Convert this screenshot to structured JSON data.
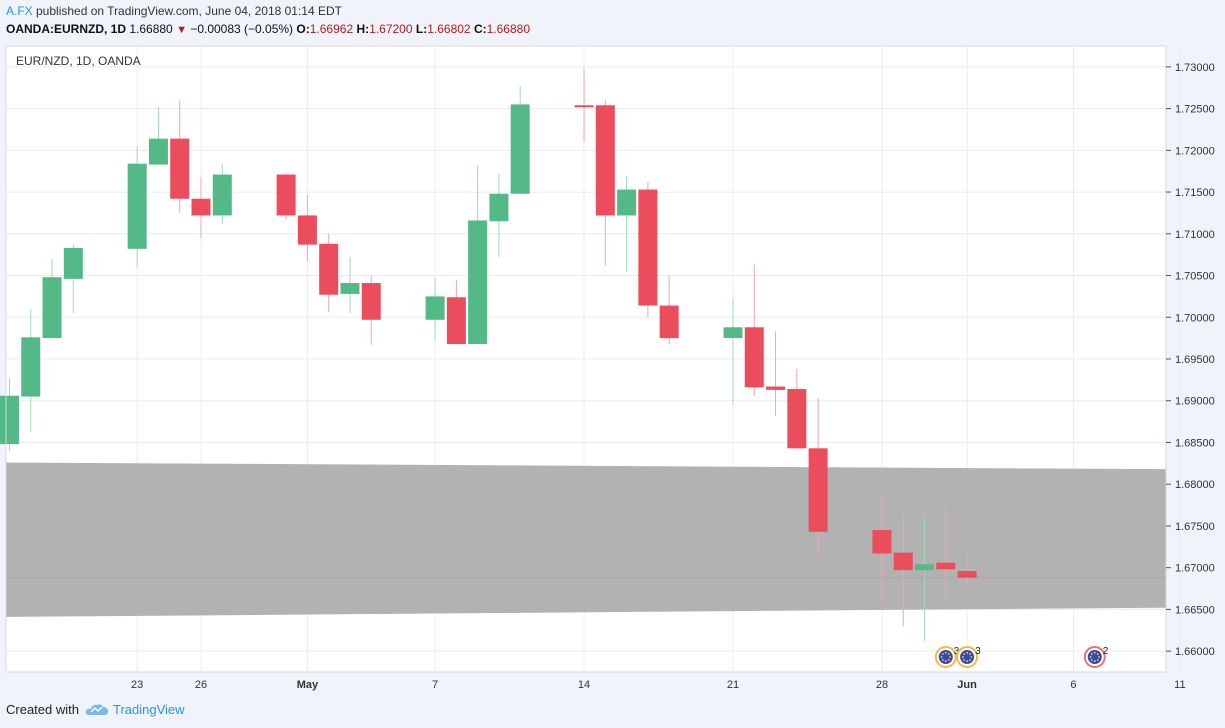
{
  "header": {
    "user": "A.FX",
    "published_text": " published on TradingView.com, June 04, 2018 01:14 EDT",
    "symbol_line": "OANDA:EURNZD, 1D",
    "last": "1.66880",
    "arrow": "▼",
    "change": "−0.00083 (−0.05%)",
    "o_label": "O:",
    "o_value": "1.66962",
    "h_label": "H:",
    "h_value": "1.67200",
    "l_label": "L:",
    "l_value": "1.66802",
    "c_label": "C:",
    "c_value": "1.66880"
  },
  "footer": {
    "created_with": "Created with",
    "brand": "TradingView"
  },
  "colors": {
    "up": "#53b987",
    "down": "#eb4d5c",
    "band": "#b2b2b2",
    "grid": "#e9ecf1",
    "price_line": "#e88a96"
  },
  "chart_data": {
    "type": "candlestick",
    "title": "EUR/NZD, 1D, OANDA",
    "ylim": [
      1.6575,
      1.7325
    ],
    "y_ticks": [
      "1.73000",
      "1.72500",
      "1.72000",
      "1.71500",
      "1.71000",
      "1.70500",
      "1.70000",
      "1.69500",
      "1.69000",
      "1.68500",
      "1.68000",
      "1.67500",
      "1.67000",
      "1.66500",
      "1.66000"
    ],
    "x_ticks": [
      {
        "label": "23",
        "date": "2018-04-23"
      },
      {
        "label": "26",
        "date": "2018-04-26"
      },
      {
        "label": "May",
        "date": "2018-05-01"
      },
      {
        "label": "7",
        "date": "2018-05-07"
      },
      {
        "label": "14",
        "date": "2018-05-14"
      },
      {
        "label": "21",
        "date": "2018-05-21"
      },
      {
        "label": "28",
        "date": "2018-05-28"
      },
      {
        "label": "Jun",
        "date": "2018-06-01"
      },
      {
        "label": "6",
        "date": "2018-06-06"
      },
      {
        "label": "11",
        "date": "2018-06-11"
      }
    ],
    "candles": [
      {
        "date": "2018-04-17",
        "o": 1.6848,
        "h": 1.6927,
        "l": 1.684,
        "c": 1.6906
      },
      {
        "date": "2018-04-18",
        "o": 1.6905,
        "h": 1.701,
        "l": 1.6863,
        "c": 1.6976
      },
      {
        "date": "2018-04-19",
        "o": 1.6975,
        "h": 1.707,
        "l": 1.6975,
        "c": 1.7048
      },
      {
        "date": "2018-04-20",
        "o": 1.7046,
        "h": 1.7088,
        "l": 1.7005,
        "c": 1.7083
      },
      {
        "date": "2018-04-23",
        "o": 1.7082,
        "h": 1.7205,
        "l": 1.706,
        "c": 1.7184
      },
      {
        "date": "2018-04-24",
        "o": 1.7183,
        "h": 1.7252,
        "l": 1.7183,
        "c": 1.7214
      },
      {
        "date": "2018-04-25",
        "o": 1.7214,
        "h": 1.726,
        "l": 1.7125,
        "c": 1.7142
      },
      {
        "date": "2018-04-26",
        "o": 1.7142,
        "h": 1.7168,
        "l": 1.7095,
        "c": 1.7122
      },
      {
        "date": "2018-04-27",
        "o": 1.7122,
        "h": 1.7183,
        "l": 1.7112,
        "c": 1.7171
      },
      {
        "date": "2018-04-30",
        "o": 1.7171,
        "h": 1.7172,
        "l": 1.7117,
        "c": 1.7122
      },
      {
        "date": "2018-05-01",
        "o": 1.7122,
        "h": 1.7147,
        "l": 1.7067,
        "c": 1.7087
      },
      {
        "date": "2018-05-02",
        "o": 1.7088,
        "h": 1.71,
        "l": 1.7006,
        "c": 1.7027
      },
      {
        "date": "2018-05-03",
        "o": 1.7028,
        "h": 1.7072,
        "l": 1.7005,
        "c": 1.7041
      },
      {
        "date": "2018-05-04",
        "o": 1.7041,
        "h": 1.705,
        "l": 1.6967,
        "c": 1.6997
      },
      {
        "date": "2018-05-07",
        "o": 1.6997,
        "h": 1.7047,
        "l": 1.6972,
        "c": 1.7025
      },
      {
        "date": "2018-05-08",
        "o": 1.7024,
        "h": 1.7045,
        "l": 1.6968,
        "c": 1.6968
      },
      {
        "date": "2018-05-09",
        "o": 1.6968,
        "h": 1.7182,
        "l": 1.6968,
        "c": 1.7116
      },
      {
        "date": "2018-05-10",
        "o": 1.7115,
        "h": 1.7172,
        "l": 1.7072,
        "c": 1.7148
      },
      {
        "date": "2018-05-11",
        "o": 1.7148,
        "h": 1.7277,
        "l": 1.7147,
        "c": 1.7255
      },
      {
        "date": "2018-05-14",
        "o": 1.7254,
        "h": 1.7297,
        "l": 1.721,
        "c": 1.7252
      },
      {
        "date": "2018-05-15",
        "o": 1.7254,
        "h": 1.726,
        "l": 1.7062,
        "c": 1.7122
      },
      {
        "date": "2018-05-16",
        "o": 1.7122,
        "h": 1.717,
        "l": 1.7055,
        "c": 1.7153
      },
      {
        "date": "2018-05-17",
        "o": 1.7153,
        "h": 1.7162,
        "l": 1.7,
        "c": 1.7014
      },
      {
        "date": "2018-05-18",
        "o": 1.7014,
        "h": 1.705,
        "l": 1.6967,
        "c": 1.6975
      },
      {
        "date": "2018-05-21",
        "o": 1.6975,
        "h": 1.7023,
        "l": 1.6895,
        "c": 1.6988
      },
      {
        "date": "2018-05-22",
        "o": 1.6988,
        "h": 1.7063,
        "l": 1.6905,
        "c": 1.6916
      },
      {
        "date": "2018-05-23",
        "o": 1.6917,
        "h": 1.6983,
        "l": 1.6882,
        "c": 1.6913
      },
      {
        "date": "2018-05-24",
        "o": 1.6914,
        "h": 1.6938,
        "l": 1.6842,
        "c": 1.6843
      },
      {
        "date": "2018-05-25",
        "o": 1.6843,
        "h": 1.6903,
        "l": 1.6715,
        "c": 1.6743
      },
      {
        "date": "2018-05-28",
        "o": 1.6745,
        "h": 1.6788,
        "l": 1.6658,
        "c": 1.6717
      },
      {
        "date": "2018-05-29",
        "o": 1.6718,
        "h": 1.6765,
        "l": 1.663,
        "c": 1.6697
      },
      {
        "date": "2018-05-30",
        "o": 1.6697,
        "h": 1.676,
        "l": 1.6612,
        "c": 1.6704
      },
      {
        "date": "2018-05-31",
        "o": 1.6706,
        "h": 1.6774,
        "l": 1.666,
        "c": 1.6698
      },
      {
        "date": "2018-06-01",
        "o": 1.6696,
        "h": 1.672,
        "l": 1.668,
        "c": 1.6688
      }
    ],
    "band": {
      "upper_start": 1.6826,
      "upper_end": 1.6818,
      "lower_start": 1.6641,
      "lower_end": 1.6652
    },
    "last_price": 1.6688,
    "events": [
      {
        "date": "2018-05-31",
        "count": "3"
      },
      {
        "date": "2018-06-01",
        "count": "3"
      },
      {
        "date": "2018-06-07",
        "count": "2"
      }
    ]
  }
}
